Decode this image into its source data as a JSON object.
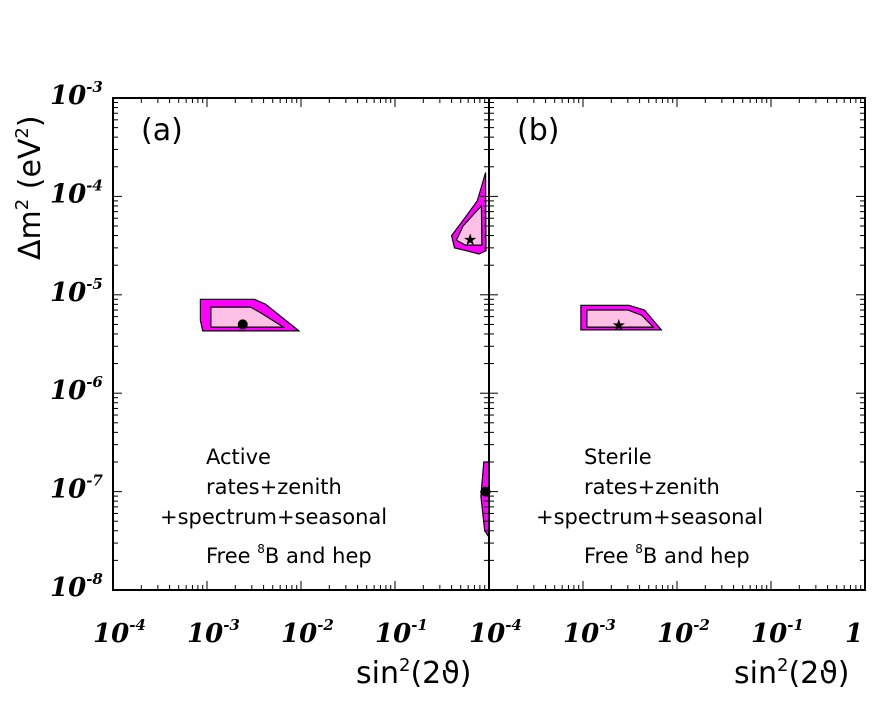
{
  "chart_data": [
    {
      "type": "contour",
      "panel_label": "(a)",
      "xlabel_base": "sin",
      "xlabel_power": "2",
      "xlabel_arg": "(2ϑ)",
      "xscale": "log",
      "yscale": "log",
      "xlim": [
        0.0001,
        1
      ],
      "ylim": [
        1e-08,
        0.001
      ],
      "x_tick_labels": [
        {
          "value": 0.0001,
          "base": "10",
          "exp": "-4"
        },
        {
          "value": 0.001,
          "base": "10",
          "exp": "-3"
        },
        {
          "value": 0.01,
          "base": "10",
          "exp": "-2"
        },
        {
          "value": 0.1,
          "base": "10",
          "exp": "-1"
        }
      ],
      "annotation": {
        "line1": "Active",
        "line2": "rates+zenith",
        "line3": "+spectrum+seasonal",
        "line4_pre": "Free ",
        "line4_sup": "8",
        "line4_post": "B and hep"
      },
      "series": [
        {
          "name": "LMA outer region",
          "color": "#ff00ff",
          "points": [
            [
              0.00085,
              9e-06
            ],
            [
              0.0032,
              9e-06
            ],
            [
              0.0042,
              8e-06
            ],
            [
              0.0095,
              4.3e-06
            ],
            [
              0.0009,
              4.3e-06
            ],
            [
              0.00085,
              5.5e-06
            ]
          ]
        },
        {
          "name": "LMA inner region",
          "color": "#ffc0e6",
          "points": [
            [
              0.0011,
              7.5e-06
            ],
            [
              0.0029,
              7.5e-06
            ],
            [
              0.0037,
              6.6e-06
            ],
            [
              0.0065,
              4.7e-06
            ],
            [
              0.0011,
              4.7e-06
            ]
          ]
        },
        {
          "name": "upper-right outer region",
          "color": "#ff00ff",
          "points": [
            [
              0.92,
              0.000175
            ],
            [
              0.93,
              2.8e-05
            ],
            [
              0.78,
              2.6e-05
            ],
            [
              0.58,
              2.8e-05
            ],
            [
              0.43,
              3e-05
            ],
            [
              0.4,
              4e-05
            ],
            [
              0.55,
              6e-05
            ],
            [
              0.75,
              9e-05
            ]
          ]
        },
        {
          "name": "upper-right inner region",
          "color": "#ffc0e6",
          "points": [
            [
              0.83,
              8e-05
            ],
            [
              0.84,
              3.2e-05
            ],
            [
              0.56,
              3.2e-05
            ],
            [
              0.45,
              3.6e-05
            ],
            [
              0.53,
              5e-05
            ]
          ]
        },
        {
          "name": "LOW outer region",
          "color": "#ff00ff",
          "points": [
            [
              0.88,
              2e-07
            ],
            [
              0.99,
              2e-07
            ],
            [
              0.99,
              3.5e-08
            ],
            [
              0.9,
              4e-08
            ],
            [
              0.82,
              9e-08
            ]
          ]
        }
      ],
      "best_fit": [
        {
          "marker": "circle",
          "x": 0.0024,
          "y": 5e-06
        },
        {
          "marker": "star",
          "x": 0.63,
          "y": 3.7e-05
        },
        {
          "marker": "circle",
          "x": 0.92,
          "y": 1e-07
        }
      ]
    },
    {
      "type": "contour",
      "panel_label": "(b)",
      "xlabel_base": "sin",
      "xlabel_power": "2",
      "xlabel_arg": "(2ϑ)",
      "xscale": "log",
      "yscale": "log",
      "xlim": [
        0.0001,
        1
      ],
      "ylim": [
        1e-08,
        0.001
      ],
      "x_tick_labels": [
        {
          "value": 0.0001,
          "base": "10",
          "exp": "-4"
        },
        {
          "value": 0.001,
          "base": "10",
          "exp": "-3"
        },
        {
          "value": 0.01,
          "base": "10",
          "exp": "-2"
        },
        {
          "value": 0.1,
          "base": "10",
          "exp": "-1"
        },
        {
          "value": 1,
          "base": "1",
          "exp": ""
        }
      ],
      "annotation": {
        "line1": "Sterile",
        "line2": "rates+zenith",
        "line3": "+spectrum+seasonal",
        "line4_pre": "Free ",
        "line4_sup": "8",
        "line4_post": "B and hep"
      },
      "series": [
        {
          "name": "outer region",
          "color": "#ff00ff",
          "points": [
            [
              0.00095,
              7.8e-06
            ],
            [
              0.0031,
              7.8e-06
            ],
            [
              0.0045,
              7e-06
            ],
            [
              0.0068,
              4.4e-06
            ],
            [
              0.00095,
              4.4e-06
            ]
          ]
        },
        {
          "name": "inner region",
          "color": "#ffc0e6",
          "points": [
            [
              0.0011,
              7e-06
            ],
            [
              0.003,
              7e-06
            ],
            [
              0.0042,
              6.2e-06
            ],
            [
              0.0056,
              4.7e-06
            ],
            [
              0.0011,
              4.7e-06
            ]
          ]
        }
      ],
      "best_fit": [
        {
          "marker": "star",
          "x": 0.0024,
          "y": 5e-06
        }
      ]
    }
  ],
  "y_axis": {
    "label_prefix": "Δm",
    "label_power": "2",
    "label_mid": " (eV",
    "label_unit_power": "2",
    "label_suffix": ")",
    "tick_labels": [
      {
        "value": 0.001,
        "base": "10",
        "exp": "-3"
      },
      {
        "value": 0.0001,
        "base": "10",
        "exp": "-4"
      },
      {
        "value": 1e-05,
        "base": "10",
        "exp": "-5"
      },
      {
        "value": 1e-06,
        "base": "10",
        "exp": "-6"
      },
      {
        "value": 1e-07,
        "base": "10",
        "exp": "-7"
      },
      {
        "value": 1e-08,
        "base": "10",
        "exp": "-8"
      }
    ]
  }
}
